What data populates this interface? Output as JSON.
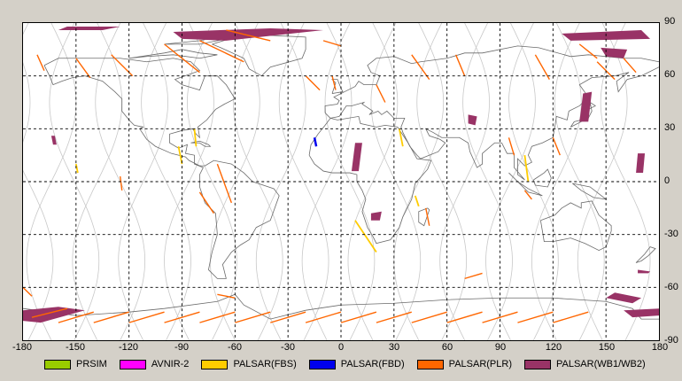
{
  "map": {
    "lon_ticks": [
      "-180",
      "-150",
      "-120",
      "-90",
      "-60",
      "-30",
      "0",
      "30",
      "60",
      "90",
      "120",
      "150",
      "180"
    ],
    "lat_ticks": [
      "90",
      "60",
      "30",
      "0",
      "-30",
      "-60",
      "-90"
    ],
    "lon_range": [
      -180,
      180
    ],
    "lat_range": [
      -90,
      90
    ],
    "grid": "dashed",
    "background": "#ffffff",
    "grid_color": "#000000",
    "coast_color": "#6a6a6a",
    "orbit_color": "#c8c8c8"
  },
  "legend": [
    {
      "label": "PRSIM",
      "color": "#99cc00"
    },
    {
      "label": "AVNIR-2",
      "color": "#ff00ff"
    },
    {
      "label": "PALSAR(FBS)",
      "color": "#ffcc00"
    },
    {
      "label": "PALSAR(FBD)",
      "color": "#0000ee"
    },
    {
      "label": "PALSAR(PLR)",
      "color": "#ff6600"
    },
    {
      "label": "PALSAR(WB1/WB2)",
      "color": "#993366"
    }
  ]
}
